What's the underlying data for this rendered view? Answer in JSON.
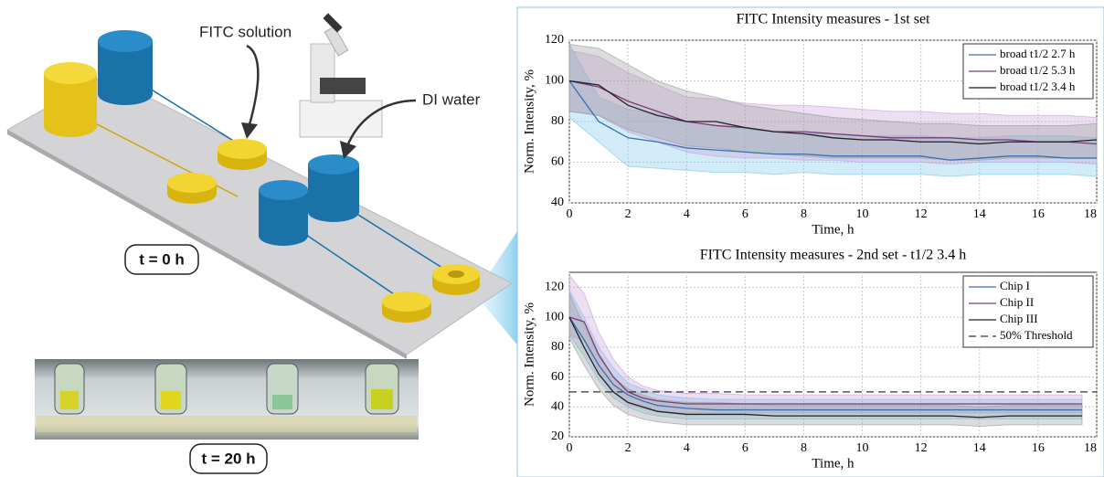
{
  "illustration": {
    "labels": {
      "fitc": "FITC solution",
      "water": "DI water",
      "t0": "t = 0 h",
      "t20": "t = 20 h"
    }
  },
  "chart_data": [
    {
      "type": "line",
      "title": "FITC Intensity measures - 1st set",
      "xlabel": "Time, h",
      "ylabel": "Norm. Intensity, %",
      "x": [
        0,
        1,
        2,
        3,
        4,
        5,
        6,
        7,
        8,
        9,
        10,
        11,
        12,
        13,
        14,
        15,
        16,
        17,
        18
      ],
      "xlim": [
        0,
        18
      ],
      "ylim": [
        40,
        120
      ],
      "xticks": [
        0,
        2,
        4,
        6,
        8,
        10,
        12,
        14,
        16,
        18
      ],
      "yticks": [
        40,
        60,
        80,
        100,
        120
      ],
      "grid": true,
      "legend": "upper right",
      "series": [
        {
          "name": "broad t1/2 2.7 h",
          "color": "#3a6fb0",
          "band_color": "#7cc6ea",
          "values": [
            100,
            80,
            72,
            70,
            67,
            66,
            65,
            64,
            64,
            63,
            63,
            63,
            63,
            61,
            62,
            63,
            63,
            62,
            62
          ],
          "lower": [
            82,
            70,
            58,
            57,
            56,
            55,
            55,
            54,
            55,
            54,
            54,
            54,
            54,
            53,
            54,
            54,
            54,
            54,
            53
          ],
          "upper": [
            118,
            92,
            86,
            84,
            80,
            78,
            76,
            75,
            74,
            74,
            73,
            73,
            73,
            72,
            72,
            73,
            73,
            73,
            72
          ]
        },
        {
          "name": "broad t1/2 5.3 h",
          "color": "#7a3a7a",
          "band_color": "#c7a2d6",
          "values": [
            100,
            97,
            90,
            85,
            80,
            78,
            77,
            75,
            75,
            74,
            73,
            72,
            72,
            72,
            71,
            71,
            70,
            70,
            69
          ],
          "lower": [
            85,
            83,
            75,
            70,
            65,
            63,
            62,
            62,
            61,
            61,
            60,
            60,
            60,
            59,
            60,
            60,
            60,
            60,
            59
          ],
          "upper": [
            115,
            112,
            104,
            98,
            92,
            91,
            89,
            88,
            88,
            87,
            86,
            85,
            85,
            84,
            84,
            83,
            83,
            83,
            82
          ]
        },
        {
          "name": "broad t1/2 3.4 h",
          "color": "#222222",
          "band_color": "#9a9a9a",
          "values": [
            100,
            98,
            88,
            83,
            80,
            80,
            77,
            75,
            74,
            72,
            71,
            71,
            70,
            70,
            69,
            70,
            70,
            70,
            71
          ],
          "lower": [
            85,
            83,
            76,
            72,
            68,
            67,
            65,
            64,
            63,
            62,
            62,
            62,
            62,
            61,
            61,
            62,
            62,
            62,
            62
          ],
          "upper": [
            118,
            116,
            108,
            100,
            95,
            92,
            88,
            86,
            84,
            82,
            81,
            80,
            79,
            79,
            78,
            78,
            78,
            78,
            79
          ]
        }
      ]
    },
    {
      "type": "line",
      "title": "FITC Intensity measures - 2nd set - t1/2 3.4 h",
      "xlabel": "Time, h",
      "ylabel": "Norm. Intensity, %",
      "x": [
        0,
        0.5,
        1,
        1.5,
        2,
        2.5,
        3,
        3.5,
        4,
        5,
        6,
        7,
        8,
        9,
        10,
        11,
        12,
        13,
        14,
        15,
        16,
        17,
        17.5
      ],
      "xlim": [
        0,
        18
      ],
      "ylim": [
        20,
        130
      ],
      "xticks": [
        0,
        2,
        4,
        6,
        8,
        10,
        12,
        14,
        16,
        18
      ],
      "yticks": [
        20,
        40,
        60,
        80,
        100,
        120
      ],
      "grid": true,
      "legend": "upper right",
      "threshold": {
        "name": "50% Threshold",
        "value": 50,
        "color": "#333333"
      },
      "series": [
        {
          "name": "Chip I",
          "color": "#3a6fb0",
          "band_color": "#7cc6ea",
          "values": [
            100,
            85,
            68,
            55,
            48,
            44,
            41,
            40,
            39,
            38,
            38,
            38,
            38,
            38,
            38,
            38,
            38,
            38,
            38,
            38,
            38,
            38,
            38
          ],
          "lower": [
            88,
            74,
            58,
            46,
            40,
            36,
            34,
            33,
            32,
            32,
            32,
            32,
            32,
            32,
            32,
            32,
            32,
            32,
            32,
            32,
            32,
            32,
            32
          ],
          "upper": [
            118,
            100,
            80,
            66,
            56,
            52,
            48,
            47,
            46,
            45,
            45,
            45,
            45,
            45,
            45,
            45,
            45,
            45,
            45,
            45,
            45,
            45,
            45
          ]
        },
        {
          "name": "Chip II",
          "color": "#7a3a7a",
          "band_color": "#c7a2d6",
          "values": [
            100,
            97,
            75,
            60,
            50,
            46,
            44,
            43,
            42,
            42,
            42,
            42,
            42,
            42,
            42,
            42,
            42,
            42,
            42,
            42,
            42,
            42,
            42
          ],
          "lower": [
            88,
            84,
            64,
            50,
            42,
            39,
            37,
            36,
            36,
            36,
            36,
            36,
            36,
            36,
            36,
            36,
            36,
            36,
            36,
            36,
            36,
            36,
            36
          ],
          "upper": [
            128,
            116,
            90,
            72,
            60,
            54,
            51,
            50,
            49,
            49,
            48,
            48,
            48,
            48,
            48,
            48,
            48,
            48,
            48,
            48,
            48,
            48,
            48
          ]
        },
        {
          "name": "Chip III",
          "color": "#222222",
          "band_color": "#9a9a9a",
          "values": [
            100,
            80,
            62,
            50,
            43,
            40,
            37,
            36,
            35,
            35,
            35,
            34,
            34,
            34,
            34,
            34,
            34,
            34,
            33,
            34,
            34,
            34,
            34
          ],
          "lower": [
            86,
            68,
            52,
            41,
            35,
            32,
            30,
            29,
            28,
            28,
            28,
            28,
            28,
            28,
            28,
            28,
            28,
            28,
            27,
            28,
            28,
            28,
            28
          ],
          "upper": [
            116,
            94,
            74,
            60,
            52,
            48,
            45,
            44,
            43,
            43,
            42,
            41,
            41,
            41,
            41,
            41,
            41,
            41,
            40,
            41,
            41,
            41,
            41
          ]
        }
      ]
    }
  ]
}
